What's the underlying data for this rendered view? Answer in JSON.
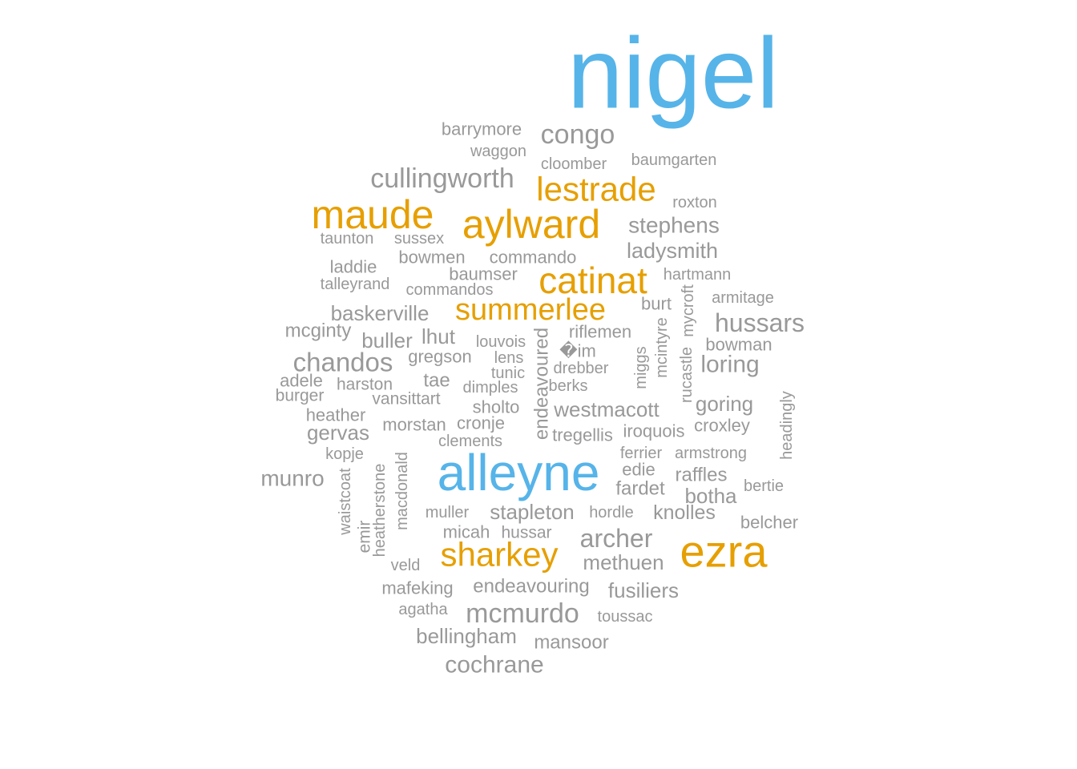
{
  "colors": {
    "blue": "#56b4e9",
    "orange": "#e69f00",
    "gray": "#999999",
    "background": "#ffffff"
  },
  "words": [
    {
      "text": "nigel",
      "color": "blue"
    },
    {
      "text": "alleyne",
      "color": "blue"
    },
    {
      "text": "ezra",
      "color": "orange"
    },
    {
      "text": "aylward",
      "color": "orange"
    },
    {
      "text": "maude",
      "color": "orange"
    },
    {
      "text": "catinat",
      "color": "orange"
    },
    {
      "text": "lestrade",
      "color": "orange"
    },
    {
      "text": "sharkey",
      "color": "orange"
    },
    {
      "text": "summerlee",
      "color": "orange"
    },
    {
      "text": "congo",
      "color": "gray"
    },
    {
      "text": "barrymore",
      "color": "gray"
    },
    {
      "text": "waggon",
      "color": "gray"
    },
    {
      "text": "cloomber",
      "color": "gray"
    },
    {
      "text": "baumgarten",
      "color": "gray"
    },
    {
      "text": "cullingworth",
      "color": "gray"
    },
    {
      "text": "roxton",
      "color": "gray"
    },
    {
      "text": "stephens",
      "color": "gray"
    },
    {
      "text": "taunton",
      "color": "gray"
    },
    {
      "text": "sussex",
      "color": "gray"
    },
    {
      "text": "ladysmith",
      "color": "gray"
    },
    {
      "text": "bowmen",
      "color": "gray"
    },
    {
      "text": "commando",
      "color": "gray"
    },
    {
      "text": "laddie",
      "color": "gray"
    },
    {
      "text": "baumser",
      "color": "gray"
    },
    {
      "text": "hartmann",
      "color": "gray"
    },
    {
      "text": "talleyrand",
      "color": "gray"
    },
    {
      "text": "commandos",
      "color": "gray"
    },
    {
      "text": "armitage",
      "color": "gray"
    },
    {
      "text": "burt",
      "color": "gray"
    },
    {
      "text": "baskerville",
      "color": "gray"
    },
    {
      "text": "hussars",
      "color": "gray"
    },
    {
      "text": "mcginty",
      "color": "gray"
    },
    {
      "text": "riflemen",
      "color": "gray"
    },
    {
      "text": "buller",
      "color": "gray"
    },
    {
      "text": "lhut",
      "color": "gray"
    },
    {
      "text": "louvois",
      "color": "gray"
    },
    {
      "text": "bowman",
      "color": "gray"
    },
    {
      "text": "�im",
      "color": "gray"
    },
    {
      "text": "chandos",
      "color": "gray"
    },
    {
      "text": "gregson",
      "color": "gray"
    },
    {
      "text": "lens",
      "color": "gray"
    },
    {
      "text": "loring",
      "color": "gray"
    },
    {
      "text": "drebber",
      "color": "gray"
    },
    {
      "text": "tunic",
      "color": "gray"
    },
    {
      "text": "adele",
      "color": "gray"
    },
    {
      "text": "harston",
      "color": "gray"
    },
    {
      "text": "tae",
      "color": "gray"
    },
    {
      "text": "berks",
      "color": "gray"
    },
    {
      "text": "dimples",
      "color": "gray"
    },
    {
      "text": "burger",
      "color": "gray"
    },
    {
      "text": "vansittart",
      "color": "gray"
    },
    {
      "text": "goring",
      "color": "gray"
    },
    {
      "text": "sholto",
      "color": "gray"
    },
    {
      "text": "westmacott",
      "color": "gray"
    },
    {
      "text": "heather",
      "color": "gray"
    },
    {
      "text": "morstan",
      "color": "gray"
    },
    {
      "text": "cronje",
      "color": "gray"
    },
    {
      "text": "croxley",
      "color": "gray"
    },
    {
      "text": "gervas",
      "color": "gray"
    },
    {
      "text": "iroquois",
      "color": "gray"
    },
    {
      "text": "tregellis",
      "color": "gray"
    },
    {
      "text": "clements",
      "color": "gray"
    },
    {
      "text": "kopje",
      "color": "gray"
    },
    {
      "text": "ferrier",
      "color": "gray"
    },
    {
      "text": "armstrong",
      "color": "gray"
    },
    {
      "text": "edie",
      "color": "gray"
    },
    {
      "text": "munro",
      "color": "gray"
    },
    {
      "text": "raffles",
      "color": "gray"
    },
    {
      "text": "fardet",
      "color": "gray"
    },
    {
      "text": "bertie",
      "color": "gray"
    },
    {
      "text": "botha",
      "color": "gray"
    },
    {
      "text": "muller",
      "color": "gray"
    },
    {
      "text": "stapleton",
      "color": "gray"
    },
    {
      "text": "hordle",
      "color": "gray"
    },
    {
      "text": "knolles",
      "color": "gray"
    },
    {
      "text": "belcher",
      "color": "gray"
    },
    {
      "text": "micah",
      "color": "gray"
    },
    {
      "text": "hussar",
      "color": "gray"
    },
    {
      "text": "archer",
      "color": "gray"
    },
    {
      "text": "methuen",
      "color": "gray"
    },
    {
      "text": "veld",
      "color": "gray"
    },
    {
      "text": "mafeking",
      "color": "gray"
    },
    {
      "text": "endeavouring",
      "color": "gray"
    },
    {
      "text": "fusiliers",
      "color": "gray"
    },
    {
      "text": "agatha",
      "color": "gray"
    },
    {
      "text": "mcmurdo",
      "color": "gray"
    },
    {
      "text": "toussac",
      "color": "gray"
    },
    {
      "text": "bellingham",
      "color": "gray"
    },
    {
      "text": "mansoor",
      "color": "gray"
    },
    {
      "text": "cochrane",
      "color": "gray"
    },
    {
      "text": "endeavoured",
      "color": "gray"
    },
    {
      "text": "miggs",
      "color": "gray"
    },
    {
      "text": "mcintyre",
      "color": "gray"
    },
    {
      "text": "rucastle",
      "color": "gray"
    },
    {
      "text": "mycroft",
      "color": "gray"
    },
    {
      "text": "headingly",
      "color": "gray"
    },
    {
      "text": "waistcoat",
      "color": "gray"
    },
    {
      "text": "emir",
      "color": "gray"
    },
    {
      "text": "heatherstone",
      "color": "gray"
    },
    {
      "text": "macdonald",
      "color": "gray"
    }
  ]
}
